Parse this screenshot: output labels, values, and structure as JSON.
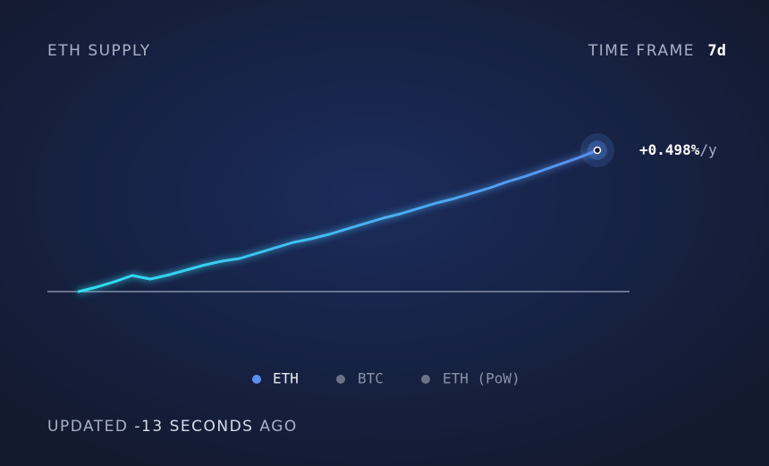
{
  "header": {
    "title": "ETH SUPPLY",
    "time_frame_label": "TIME FRAME",
    "time_frame_value": "7d"
  },
  "chart_data": {
    "type": "line",
    "series": [
      {
        "name": "ETH",
        "color": "#5b8ef0",
        "start_color": "#2de0f0",
        "values": [
          0,
          5,
          11,
          18,
          14,
          18.5,
          24,
          29.5,
          34,
          37,
          43,
          49,
          55,
          59,
          64,
          70,
          76,
          82,
          87,
          93,
          99,
          104,
          110,
          116,
          123,
          129,
          136,
          143,
          150,
          158
        ]
      }
    ],
    "inactive_legend": [
      {
        "name": "BTC",
        "color": "#6b7388"
      },
      {
        "name": "ETH (PoW)",
        "color": "#6b7388"
      }
    ],
    "ylim": [
      0,
      160
    ],
    "annotation": {
      "value": "+0.498%",
      "unit": "/y"
    }
  },
  "footer": {
    "prefix": "UPDATED",
    "count": "-13 SECONDS",
    "suffix": "AGO"
  }
}
